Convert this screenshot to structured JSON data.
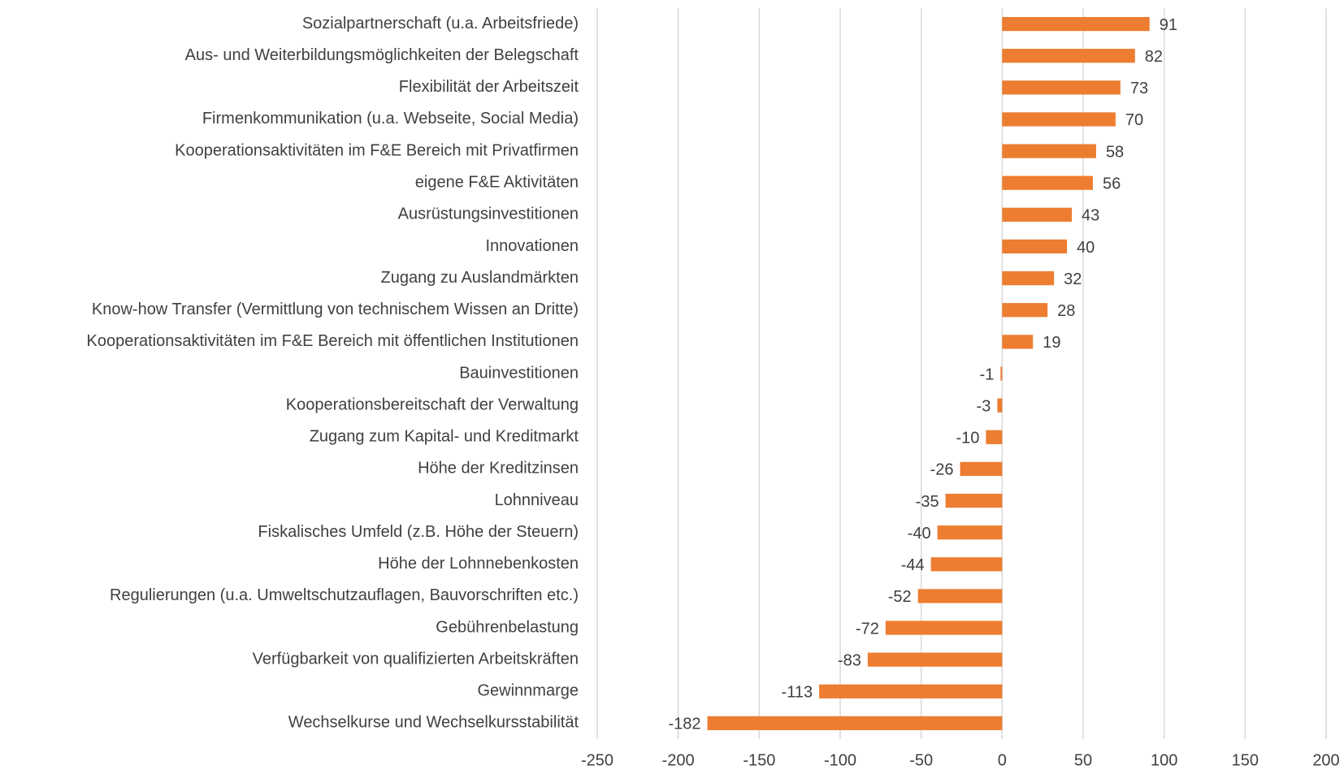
{
  "chart_data": {
    "type": "barh",
    "categories": [
      "Sozialpartnerschaft (u.a. Arbeitsfriede)",
      "Aus- und Weiterbildungsmöglichkeiten der Belegschaft",
      "Flexibilität der Arbeitszeit",
      "Firmenkommunikation (u.a. Webseite, Social Media)",
      "Kooperationsaktivitäten im F&E Bereich mit Privatfirmen",
      "eigene F&E Aktivitäten",
      "Ausrüstungsinvestitionen",
      "Innovationen",
      "Zugang zu Auslandmärkten",
      "Know-how Transfer (Vermittlung von technischem Wissen an Dritte)",
      "Kooperationsaktivitäten im F&E Bereich mit öffentlichen Institutionen",
      "Bauinvestitionen",
      "Kooperationsbereitschaft der Verwaltung",
      "Zugang zum Kapital- und Kreditmarkt",
      "Höhe der Kreditzinsen",
      "Lohnniveau",
      "Fiskalisches Umfeld (z.B. Höhe der Steuern)",
      "Höhe der Lohnnebenkosten",
      "Regulierungen (u.a. Umweltschutzauflagen, Bauvorschriften etc.)",
      "Gebührenbelastung",
      "Verfügbarkeit von qualifizierten Arbeitskräften",
      "Gewinnmarge",
      "Wechselkurse und Wechselkursstabilität"
    ],
    "values": [
      91,
      82,
      73,
      70,
      58,
      56,
      43,
      40,
      32,
      28,
      19,
      -1,
      -3,
      -10,
      -26,
      -35,
      -40,
      -44,
      -52,
      -72,
      -83,
      -113,
      -182
    ],
    "color": "#ed7d31",
    "xlim": [
      -250,
      200
    ],
    "xticks": [
      -250,
      -200,
      -150,
      -100,
      -50,
      0,
      50,
      100,
      150,
      200
    ],
    "grid": true
  }
}
